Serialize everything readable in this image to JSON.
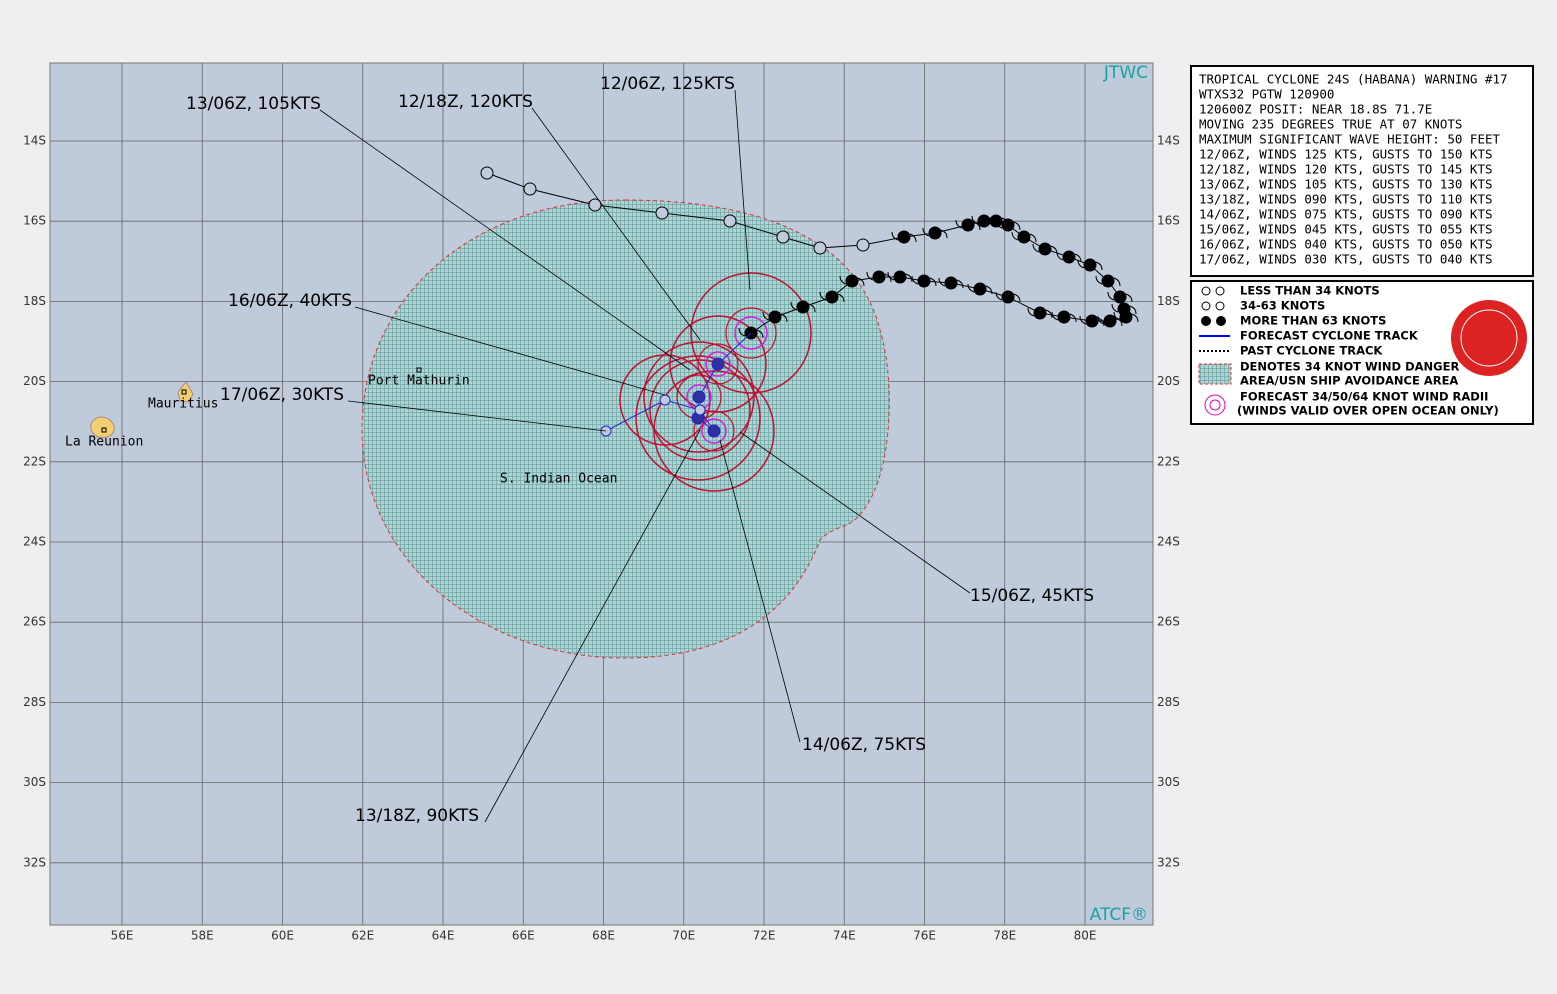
{
  "map": {
    "corner_labels": {
      "top": "JTWC",
      "bottom": "ATCF®"
    },
    "lat_labels": [
      "14S",
      "16S",
      "18S",
      "20S",
      "22S",
      "24S",
      "26S",
      "28S",
      "30S",
      "32S"
    ],
    "lon_labels": [
      "56E",
      "58E",
      "60E",
      "62E",
      "64E",
      "66E",
      "68E",
      "70E",
      "72E",
      "74E",
      "76E",
      "78E",
      "80E"
    ],
    "places": [
      "Port Mathurin",
      "Mauritius",
      "La Reunion",
      "S. Indian Ocean"
    ],
    "forecast_labels": [
      "12/06Z, 125KTS",
      "12/18Z, 120KTS",
      "13/06Z, 105KTS",
      "16/06Z, 40KTS",
      "17/06Z, 30KTS",
      "15/06Z, 45KTS",
      "14/06Z, 75KTS",
      "13/18Z, 90KTS"
    ]
  },
  "warning": {
    "lines": [
      "TROPICAL CYCLONE 24S (HABANA) WARNING #17",
      "WTXS32 PGTW 120900",
      "120600Z POSIT: NEAR 18.8S 71.7E",
      "MOVING 235 DEGREES TRUE AT 07 KNOTS",
      "MAXIMUM SIGNIFICANT WAVE HEIGHT: 50 FEET",
      "12/06Z, WINDS 125 KTS, GUSTS TO 150 KTS",
      "12/18Z, WINDS 120 KTS, GUSTS TO 145 KTS",
      "13/06Z, WINDS 105 KTS, GUSTS TO 130 KTS",
      "13/18Z, WINDS 090 KTS, GUSTS TO 110 KTS",
      "14/06Z, WINDS 075 KTS, GUSTS TO 090 KTS",
      "15/06Z, WINDS 045 KTS, GUSTS TO 055 KTS",
      "16/06Z, WINDS 040 KTS, GUSTS TO 050 KTS",
      "17/06Z, WINDS 030 KTS, GUSTS TO 040 KTS"
    ]
  },
  "legend": {
    "items": [
      "LESS THAN 34 KNOTS",
      "34-63 KNOTS",
      "MORE THAN 63 KNOTS",
      "FORECAST CYCLONE TRACK",
      "PAST CYCLONE TRACK",
      "DENOTES 34 KNOT WIND DANGER",
      "AREA/USN SHIP AVOIDANCE AREA",
      "FORECAST 34/50/64 KNOT WIND RADII",
      "(WINDS VALID OVER OPEN OCEAN ONLY)"
    ]
  }
}
